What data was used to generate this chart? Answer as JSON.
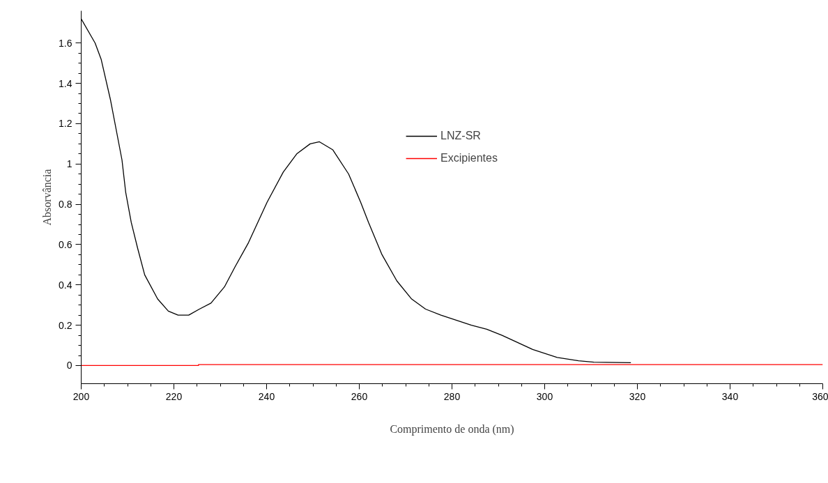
{
  "chart_data": {
    "type": "line",
    "xlabel": "Comprimento de onda (nm)",
    "ylabel": "Absorvância",
    "xlim": [
      200,
      360
    ],
    "xticks": [
      200,
      220,
      240,
      260,
      280,
      300,
      320,
      340,
      360
    ],
    "ylim": [
      -0.09,
      1.76
    ],
    "yticks": [
      0,
      0.2,
      0.4,
      0.6,
      0.8,
      1,
      1.2,
      1.4,
      1.6
    ],
    "grid": false,
    "legend": "top",
    "marker": "none",
    "line_style": "solid",
    "series": [
      {
        "name": "LNZ-SR",
        "color": "#000000",
        "x": [
          200,
          203,
          204.3,
          206.3,
          208.8,
          209.6,
          210.8,
          212.2,
          213.7,
          216.5,
          218.8,
          220.9,
          223.2,
          225.5,
          228,
          230.9,
          233.2,
          236.1,
          240.1,
          243.6,
          246.5,
          249.4,
          251.4,
          254.3,
          257.7,
          260.3,
          262,
          264.9,
          268.1,
          271.3,
          274.3,
          277.6,
          284.2,
          287.5,
          290.8,
          297.4,
          302.7,
          307.3,
          310.6,
          318.6
        ],
        "values": [
          1.72,
          1.6,
          1.52,
          1.32,
          1.02,
          0.86,
          0.71,
          0.58,
          0.45,
          0.33,
          0.27,
          0.25,
          0.25,
          0.28,
          0.31,
          0.39,
          0.49,
          0.61,
          0.81,
          0.96,
          1.05,
          1.1,
          1.11,
          1.07,
          0.95,
          0.81,
          0.71,
          0.55,
          0.42,
          0.33,
          0.28,
          0.25,
          0.2,
          0.18,
          0.15,
          0.08,
          0.04,
          0.024,
          0.017,
          0.014
        ]
      },
      {
        "name": "Excipientes",
        "color": "#ff0000",
        "x": [
          200,
          225.3,
          225.3,
          360
        ],
        "values": [
          0,
          0,
          0.005,
          0.005
        ]
      }
    ]
  }
}
